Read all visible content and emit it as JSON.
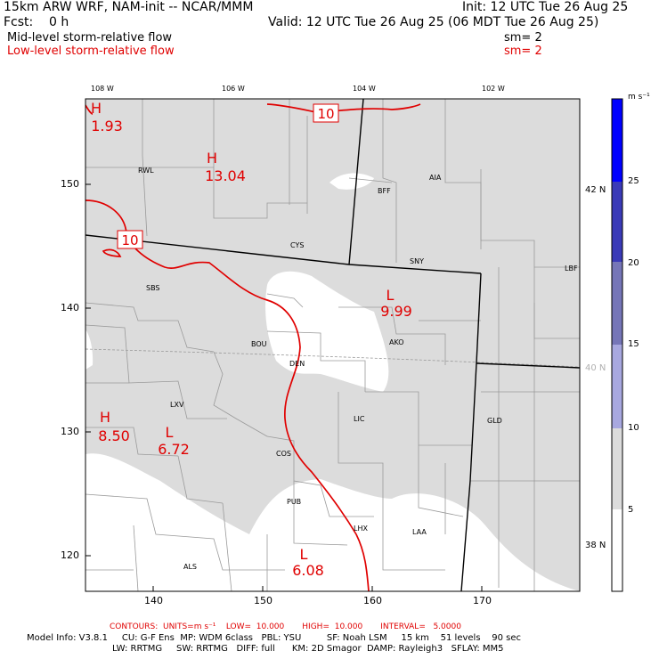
{
  "header": {
    "title": "15km ARW WRF, NAM-init -- NCAR/MMM",
    "init": "Init: 12 UTC Tue 26 Aug 25",
    "fcst": "Fcst:    0 h",
    "valid": "Valid: 12 UTC Tue 26 Aug 25 (06 MDT Tue 26 Aug 25)",
    "mid_field": "Mid-level storm-relative flow",
    "mid_sm": "sm= 2",
    "low_field": "Low-level storm-relative flow",
    "low_sm": "sm= 2"
  },
  "map": {
    "top_lon_labels": [
      "108 W",
      "106 W",
      "104 W",
      "102 W"
    ],
    "left_y_labels": [
      "150",
      "140",
      "130",
      "120"
    ],
    "bottom_x_labels": [
      "140",
      "150",
      "160",
      "170"
    ],
    "right_lat_labels": [
      "42 N",
      "40 N",
      "38 N"
    ],
    "stations": [
      "RWL",
      "BFF",
      "AIA",
      "CYS",
      "SNY",
      "LBF",
      "SBS",
      "BOU",
      "DEN",
      "AKO",
      "LXV",
      "LIC",
      "GLD",
      "COS",
      "PUB",
      "LHX",
      "LAA",
      "ALS"
    ],
    "extrema": [
      {
        "type": "H",
        "value": "1.93"
      },
      {
        "type": "H",
        "value": "13.04"
      },
      {
        "type": "L",
        "value": "9.99"
      },
      {
        "type": "H",
        "value": "8.50"
      },
      {
        "type": "L",
        "value": "6.72"
      },
      {
        "type": "L",
        "value": "6.08"
      }
    ],
    "contour_labels": [
      "10",
      "10"
    ],
    "colors": {
      "shade_low": "#dcdcdc",
      "contour": "#e00000",
      "border": "#000000",
      "county": "#9a9a9a"
    }
  },
  "colorbar": {
    "units": "m s⁻¹",
    "labels": [
      "25",
      "20",
      "15",
      "10",
      "5"
    ],
    "colors": [
      "#0000ff",
      "#3a3ab8",
      "#7676b8",
      "#a8a8e0",
      "#dcdcdc",
      "#ffffff"
    ]
  },
  "footer": {
    "contours": "CONTOURS:  UNITS=m s⁻¹    LOW=  10.000       HIGH=  10.000       INTERVAL=   5.0000",
    "model_line1": "Model Info: V3.8.1     CU: G-F Ens  MP: WDM 6class   PBL: YSU         SF: Noah LSM     15 km    51 levels    90 sec",
    "model_line2": "LW: RRTMG     SW: RRTMG   DIFF: full      KM: 2D Smagor  DAMP: Rayleigh3   SFLAY: MM5"
  }
}
